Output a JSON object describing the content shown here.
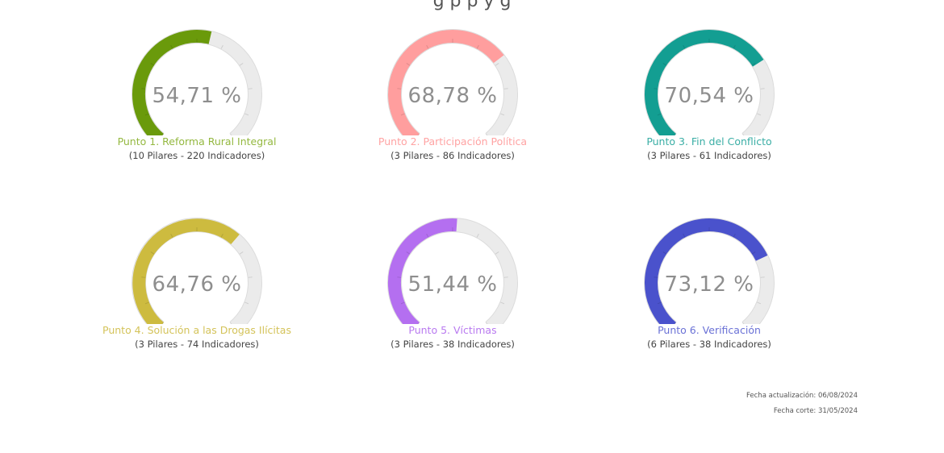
{
  "header": {
    "partial_text": "g   p  p                         y   g"
  },
  "chart_data": {
    "type": "gauge",
    "gauges": [
      {
        "value": 54.71,
        "label": "54,71 %",
        "title": "Punto 1. Reforma Rural Integral",
        "subtitle": "(10 Pilares - 220 Indicadores)",
        "color": "#6a9a0b",
        "title_color": "#94b840"
      },
      {
        "value": 68.78,
        "label": "68,78 %",
        "title": "Punto 2. Participación Política",
        "subtitle": "(3 Pilares - 86 Indicadores)",
        "color": "#ff9e9e",
        "title_color": "#ffa3a3"
      },
      {
        "value": 70.54,
        "label": "70,54 %",
        "title": "Punto 3. Fin del Conflicto",
        "subtitle": "(3 Pilares - 61 Indicadores)",
        "color": "#139e92",
        "title_color": "#3aaea5"
      },
      {
        "value": 64.76,
        "label": "64,76 %",
        "title": "Punto 4. Solución a las Drogas Ilícitas",
        "subtitle": "(3 Pilares - 74 Indicadores)",
        "color": "#cdbb3f",
        "title_color": "#d4c35a"
      },
      {
        "value": 51.44,
        "label": "51,44 %",
        "title": "Punto 5. Víctimas",
        "subtitle": "(3 Pilares - 38 Indicadores)",
        "color": "#b46ff0",
        "title_color": "#b97af0"
      },
      {
        "value": 73.12,
        "label": "73,12 %",
        "title": "Punto 6. Verificación",
        "subtitle": "(6 Pilares - 38 Indicadores)",
        "color": "#4a52cc",
        "title_color": "#6a71d6"
      }
    ],
    "range": [
      0,
      100
    ],
    "track_color": "#ebebeb"
  },
  "footer": {
    "updated": "Fecha actualización: 06/08/2024",
    "cutoff": "Fecha corte: 31/05/2024"
  }
}
